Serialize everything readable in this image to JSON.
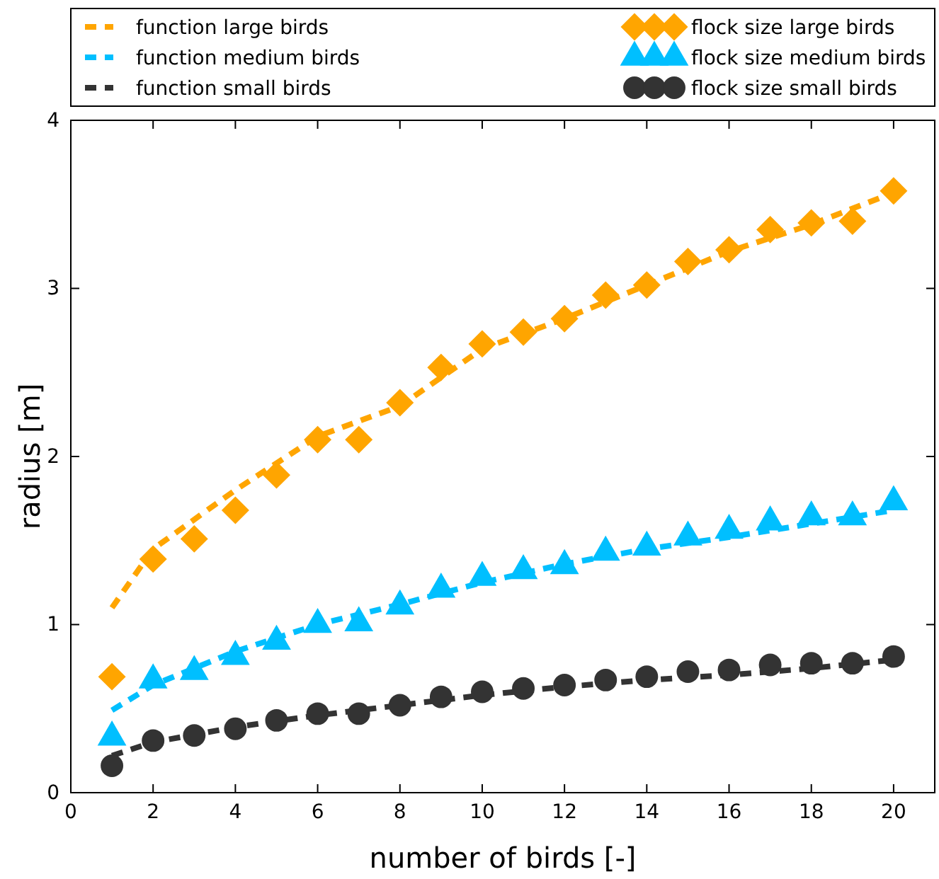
{
  "chart_data": {
    "type": "scatter",
    "xlabel": "number of birds [-]",
    "ylabel": "radius [m]",
    "xlim": [
      0,
      21
    ],
    "xticks": [
      0,
      2,
      4,
      6,
      8,
      10,
      12,
      14,
      16,
      18,
      20
    ],
    "ylim": [
      0,
      4
    ],
    "yticks": [
      0,
      1,
      2,
      3,
      4
    ],
    "grid": false,
    "legend": "top",
    "series": [
      {
        "name": "function large birds",
        "type": "line",
        "line_style": "dashed",
        "marker": "none",
        "color": "#ffa500",
        "x": [
          1,
          2,
          4,
          6,
          8,
          10,
          12,
          14,
          16,
          18,
          20
        ],
        "values": [
          1.1,
          1.45,
          1.8,
          2.12,
          2.3,
          2.64,
          2.82,
          3.02,
          3.22,
          3.38,
          3.57
        ]
      },
      {
        "name": "function medium birds",
        "type": "line",
        "line_style": "dashed",
        "marker": "none",
        "color": "#00bfff",
        "x": [
          1,
          2,
          4,
          6,
          8,
          10,
          12,
          14,
          16,
          18,
          20
        ],
        "values": [
          0.49,
          0.64,
          0.84,
          1.0,
          1.12,
          1.25,
          1.36,
          1.45,
          1.52,
          1.6,
          1.68
        ]
      },
      {
        "name": "function small birds",
        "type": "line",
        "line_style": "dashed",
        "marker": "none",
        "color": "#333333",
        "x": [
          1,
          2,
          4,
          6,
          8,
          10,
          12,
          14,
          16,
          18,
          20
        ],
        "values": [
          0.22,
          0.3,
          0.39,
          0.46,
          0.52,
          0.58,
          0.63,
          0.67,
          0.7,
          0.74,
          0.79
        ]
      },
      {
        "name": "flock size large birds",
        "type": "scatter",
        "marker": "diamond",
        "color": "#ffa500",
        "x": [
          1,
          2,
          3,
          4,
          5,
          6,
          7,
          8,
          9,
          10,
          11,
          12,
          13,
          14,
          15,
          16,
          17,
          18,
          19,
          20
        ],
        "values": [
          0.69,
          1.39,
          1.51,
          1.68,
          1.89,
          2.1,
          2.1,
          2.32,
          2.53,
          2.67,
          2.74,
          2.82,
          2.96,
          3.02,
          3.16,
          3.23,
          3.35,
          3.39,
          3.4,
          3.58
        ]
      },
      {
        "name": "flock size medium birds",
        "type": "scatter",
        "marker": "triangle",
        "color": "#00bfff",
        "x": [
          1,
          2,
          3,
          4,
          5,
          6,
          7,
          8,
          9,
          10,
          11,
          12,
          13,
          14,
          15,
          16,
          17,
          18,
          19,
          20
        ],
        "values": [
          0.33,
          0.67,
          0.72,
          0.81,
          0.9,
          1.0,
          1.01,
          1.11,
          1.21,
          1.28,
          1.32,
          1.35,
          1.43,
          1.46,
          1.52,
          1.56,
          1.61,
          1.64,
          1.64,
          1.73
        ]
      },
      {
        "name": "flock size small birds",
        "type": "scatter",
        "marker": "circle",
        "color": "#333333",
        "x": [
          1,
          2,
          3,
          4,
          5,
          6,
          7,
          8,
          9,
          10,
          11,
          12,
          13,
          14,
          15,
          16,
          17,
          18,
          19,
          20
        ],
        "values": [
          0.16,
          0.31,
          0.34,
          0.38,
          0.43,
          0.47,
          0.47,
          0.52,
          0.57,
          0.6,
          0.62,
          0.64,
          0.67,
          0.69,
          0.72,
          0.73,
          0.76,
          0.77,
          0.77,
          0.81
        ]
      }
    ]
  }
}
